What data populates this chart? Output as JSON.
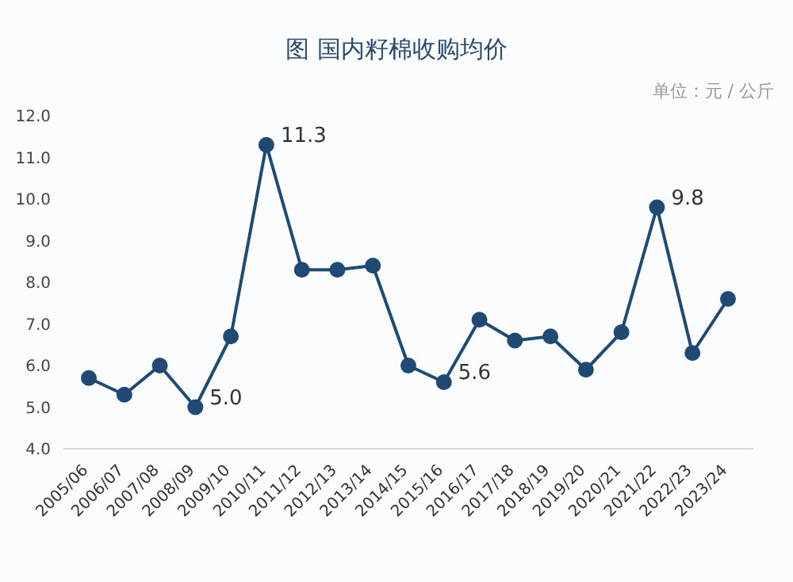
{
  "chart_data": {
    "type": "line",
    "title": "图 国内籽棉收购均价",
    "ylabel": "单位：元 / 公斤",
    "categories": [
      "2005/06",
      "2006/07",
      "2007/08",
      "2008/09",
      "2009/10",
      "2010/11",
      "2011/12",
      "2012/13",
      "2013/14",
      "2014/15",
      "2015/16",
      "2016/17",
      "2017/18",
      "2018/19",
      "2019/20",
      "2020/21",
      "2021/22",
      "2022/23",
      "2023/24"
    ],
    "series": [
      {
        "color": "#1f4a73",
        "values": [
          5.7,
          5.3,
          6.0,
          5.0,
          6.7,
          11.3,
          8.3,
          8.3,
          8.4,
          6.0,
          5.6,
          7.1,
          6.6,
          6.7,
          5.9,
          6.8,
          9.8,
          6.3,
          7.6
        ],
        "value_labels": [
          null,
          null,
          null,
          "5.0",
          null,
          "11.3",
          null,
          null,
          null,
          null,
          "5.6",
          null,
          null,
          null,
          null,
          null,
          "9.8",
          null,
          null
        ]
      }
    ],
    "ylim": [
      4,
      12
    ],
    "yticks": [
      {
        "value": 4,
        "label": "4.0"
      },
      {
        "value": 5,
        "label": "5.0"
      },
      {
        "value": 6,
        "label": "6.0"
      },
      {
        "value": 7,
        "label": "7.0"
      },
      {
        "value": 8,
        "label": "8.0"
      },
      {
        "value": 9,
        "label": "9.0"
      },
      {
        "value": 10,
        "label": "10.0"
      },
      {
        "value": 11,
        "label": "11.0"
      },
      {
        "value": 12,
        "label": "12.0"
      }
    ],
    "grid": false,
    "legend": false,
    "marker": "circle",
    "line_style": "solid"
  }
}
